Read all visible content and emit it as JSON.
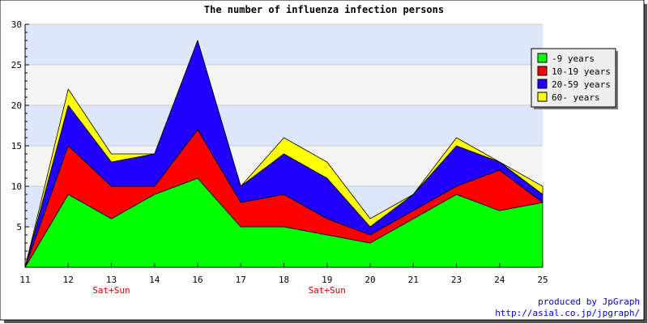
{
  "chart_data": {
    "type": "area",
    "stacked": true,
    "title": "The number of influenza infection persons",
    "categories": [
      "11",
      "12",
      "13",
      "14",
      "16",
      "17",
      "18",
      "19",
      "20",
      "21",
      "23",
      "24",
      "25"
    ],
    "category_sublabels": [
      "",
      "",
      "Sat+Sun",
      "",
      "",
      "",
      "",
      "Sat+Sun",
      "",
      "",
      "",
      "",
      ""
    ],
    "ylim": [
      0,
      30
    ],
    "yticks": [
      5,
      10,
      15,
      20,
      25,
      30
    ],
    "series": [
      {
        "name": "-9 years",
        "color": "#00ff00",
        "values": [
          0,
          9,
          6,
          9,
          11,
          5,
          5,
          4,
          3,
          6,
          9,
          7,
          8
        ]
      },
      {
        "name": "10-19 years",
        "color": "#ff0000",
        "values": [
          0,
          6,
          4,
          1,
          6,
          3,
          4,
          2,
          1,
          1,
          1,
          5,
          0
        ]
      },
      {
        "name": "20-59 years",
        "color": "#2200ff",
        "values": [
          0,
          5,
          3,
          4,
          11,
          2,
          5,
          5,
          1,
          2,
          5,
          1,
          1
        ]
      },
      {
        "name": "60- years",
        "color": "#ffff00",
        "values": [
          0,
          2,
          1,
          0,
          0,
          0,
          2,
          2,
          1,
          0,
          1,
          0,
          1
        ]
      }
    ],
    "legend_position": "top-right",
    "grid": true,
    "band_colors": [
      "#dde6fb",
      "#f4f4f4"
    ],
    "sublabel_color": "#cc0000"
  },
  "footer": {
    "line1": "produced by JpGraph",
    "line2": "http://asial.co.jp/jpgraph/",
    "color": "#0000cc"
  }
}
